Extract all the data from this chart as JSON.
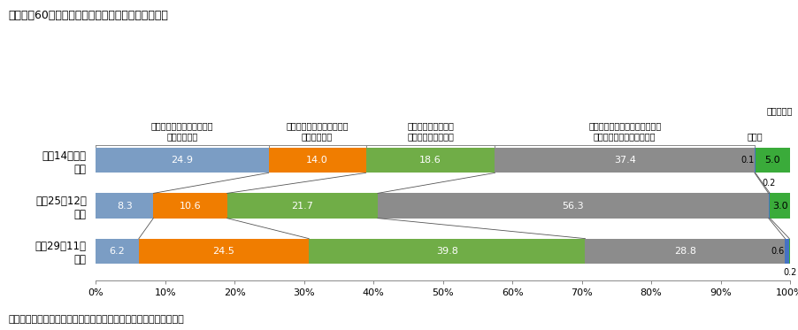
{
  "title": "附属資料60　自助、共助、公助の対策に関する意識",
  "categories": [
    "平成14年９月\n調査",
    "平成25年12月\n調査",
    "平成29年11月\n調査"
  ],
  "rows_data": [
    [
      24.9,
      14.0,
      18.6,
      37.4,
      0.1,
      5.0
    ],
    [
      8.3,
      10.6,
      21.7,
      56.3,
      0.2,
      3.0
    ],
    [
      6.2,
      24.5,
      39.8,
      28.8,
      0.6,
      0.2
    ]
  ],
  "segment_colors": [
    "#7b9dc4",
    "#f07d00",
    "#70ad47",
    "#8c8c8c",
    "#4472c4",
    "#3aab3a"
  ],
  "source": "出典：内閣府政府広報室「防災に関する世論調査」より内閣府作成",
  "background": "#ffffff",
  "bar_height": 0.55,
  "header_texts": [
    "公助に重点を置いた対応を\nすべきである",
    "共助に重点を置いた対応を\nすべきである",
    "自助に重点を置いた\n対応をすべきである",
    "公助、共助、自助のバランスが\n取れた対応をすべきである"
  ],
  "label_other": "その他",
  "label_unknown": "わからない"
}
